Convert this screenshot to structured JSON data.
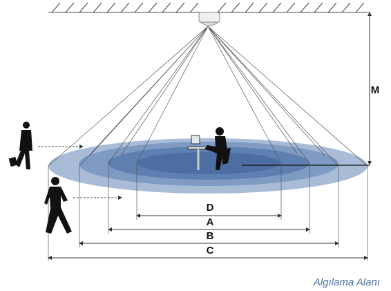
{
  "labels": {
    "height": "M",
    "d": "D",
    "a": "A",
    "b": "B",
    "c": "C"
  },
  "caption": "Algılama Alanı"
}
